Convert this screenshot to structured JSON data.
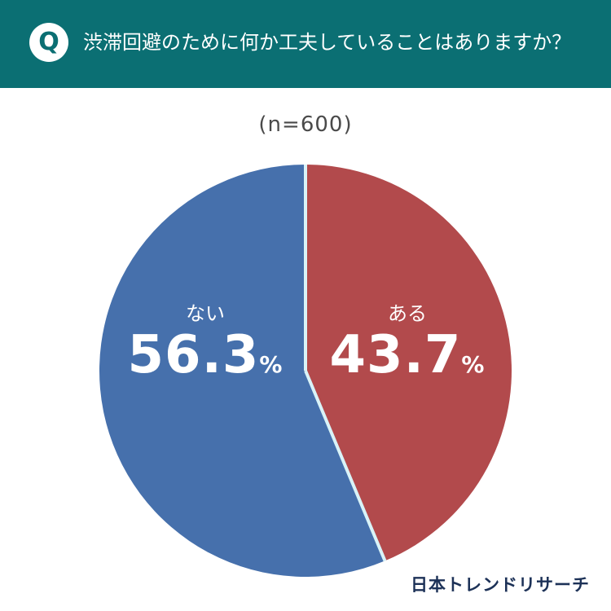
{
  "header": {
    "badge": "Q",
    "question": "渋滞回避のために何か工夫していることはありますか？",
    "background_color": "#0b6f73"
  },
  "sample_size": "(n=600)",
  "chart_data": {
    "type": "pie",
    "slices": [
      {
        "label": "ある",
        "value": 43.7,
        "display": "43.7",
        "unit": "%",
        "color": "#b24a4c"
      },
      {
        "label": "ない",
        "value": 56.3,
        "display": "56.3",
        "unit": "%",
        "color": "#4670ac"
      }
    ],
    "start": "top",
    "direction": "clockwise",
    "separator_color": "#d9f3f8"
  },
  "brand": "日本トレンドリサーチ"
}
